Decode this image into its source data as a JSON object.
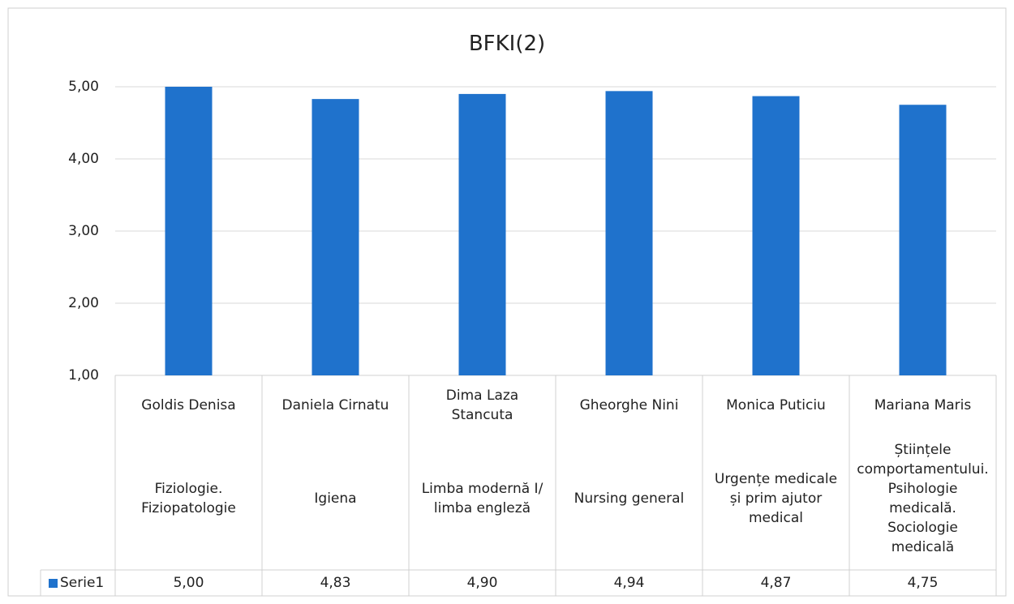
{
  "chart_data": {
    "type": "bar",
    "title": "BFKI(2)",
    "categories": [
      "Goldis Denisa",
      "Daniela Cirnatu",
      "Dima Laza Stancuta",
      "Gheorghe Nini",
      "Monica Puticiu",
      "Mariana Maris"
    ],
    "subcategories": [
      "Fiziologie. Fiziopatologie",
      "Igiena",
      "Limba modernă I/ limba engleză",
      "Nursing general",
      "Urgențe medicale și prim ajutor medical",
      "Științele comportamentului. Psihologie medicală. Sociologie medicală"
    ],
    "series": [
      {
        "name": "Serie1",
        "color": "#1f72cc",
        "values": [
          5.0,
          4.83,
          4.9,
          4.94,
          4.87,
          4.75
        ],
        "value_labels": [
          "5,00",
          "4,83",
          "4,90",
          "4,94",
          "4,87",
          "4,75"
        ]
      }
    ],
    "ylim": [
      1,
      5
    ],
    "yticks": [
      {
        "value": 1,
        "label": "1,00"
      },
      {
        "value": 2,
        "label": "2,00"
      },
      {
        "value": 3,
        "label": "3,00"
      },
      {
        "value": 4,
        "label": "4,00"
      },
      {
        "value": 5,
        "label": "5,00"
      }
    ],
    "grid": true
  }
}
